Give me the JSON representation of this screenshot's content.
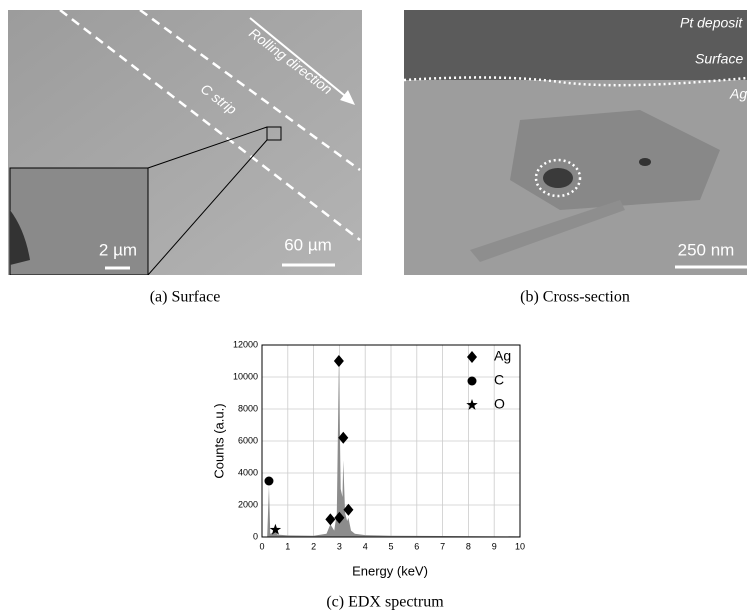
{
  "panels": [
    {
      "caption": "(a) Surface",
      "labels": [
        "Rolling direction",
        "C strip"
      ],
      "scale_bar": "60 µm",
      "inset_scale_bar": "2 µm"
    },
    {
      "caption": "(b) Cross-section",
      "labels": [
        "Pt deposit",
        "Surface",
        "Ag"
      ],
      "scale_bar": "250 nm"
    }
  ],
  "chart_data": {
    "type": "area",
    "caption": "(c) EDX spectrum",
    "x_label": "Energy (keV)",
    "y_label": "Counts (a.u.)",
    "color": "#8c8c8c",
    "x": [
      0,
      0.2,
      0.27,
      0.32,
      0.45,
      0.52,
      0.6,
      1,
      2,
      2.5,
      2.65,
      2.8,
      2.9,
      2.98,
      3.05,
      3.12,
      3.15,
      3.22,
      3.3,
      3.35,
      3.45,
      3.6,
      4,
      5,
      7,
      10
    ],
    "values": [
      0,
      0,
      3200,
      200,
      300,
      450,
      150,
      100,
      80,
      200,
      800,
      400,
      1500,
      11000,
      3000,
      2500,
      4800,
      1500,
      1000,
      1200,
      400,
      200,
      120,
      80,
      60,
      40
    ],
    "series": [
      {
        "name": "Ag",
        "marker": "diamond",
        "color": "#000000",
        "x": [
          2.65,
          2.98,
          3.15,
          3.0,
          3.35
        ],
        "values": [
          1100,
          11000,
          6200,
          1200,
          1700
        ]
      },
      {
        "name": "C",
        "marker": "circle",
        "color": "#000000",
        "x": [
          0.27
        ],
        "values": [
          3500
        ]
      },
      {
        "name": "O",
        "marker": "star",
        "color": "#000000",
        "x": [
          0.52
        ],
        "values": [
          450
        ]
      }
    ],
    "xlim": [
      0,
      10
    ],
    "xticks": [
      0,
      1,
      2,
      3,
      4,
      5,
      6,
      7,
      8,
      9,
      10
    ],
    "ylim": [
      0,
      12000
    ],
    "yticks": [
      0,
      2000,
      4000,
      6000,
      8000,
      10000,
      12000
    ],
    "grid": true,
    "legend": "upper right"
  }
}
